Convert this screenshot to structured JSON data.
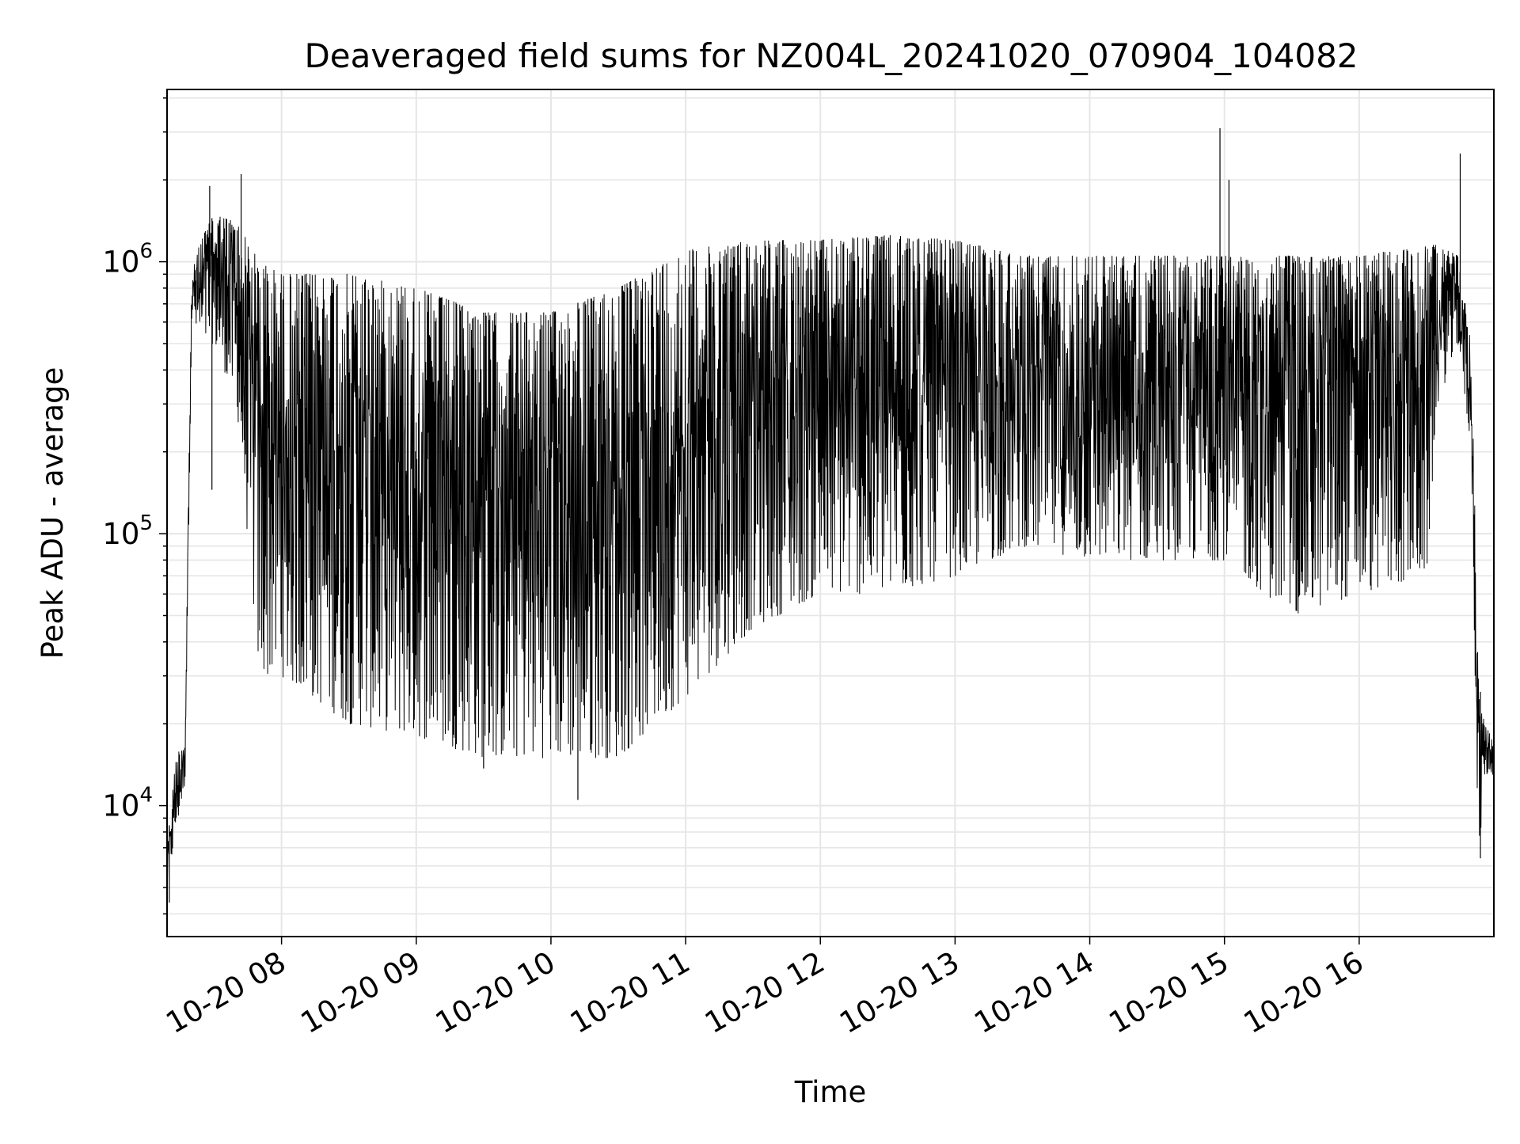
{
  "chart_data": {
    "type": "line",
    "title": "Deaveraged field sums for NZ004L_20241020_070904_104082",
    "xlabel": "Time",
    "ylabel": "Peak ADU - average",
    "y_scale": "log",
    "ylim": [
      3300,
      4300000
    ],
    "xlim": [
      "2024-10-20 07:09",
      "2024-10-20 17:00"
    ],
    "grid": true,
    "line_color": "#000000",
    "grid_color": "#e6e6e6",
    "x_ticks": [
      {
        "time": "2024-10-20 08:00",
        "label": "10-20 08"
      },
      {
        "time": "2024-10-20 09:00",
        "label": "10-20 09"
      },
      {
        "time": "2024-10-20 10:00",
        "label": "10-20 10"
      },
      {
        "time": "2024-10-20 11:00",
        "label": "10-20 11"
      },
      {
        "time": "2024-10-20 12:00",
        "label": "10-20 12"
      },
      {
        "time": "2024-10-20 13:00",
        "label": "10-20 13"
      },
      {
        "time": "2024-10-20 14:00",
        "label": "10-20 14"
      },
      {
        "time": "2024-10-20 15:00",
        "label": "10-20 15"
      },
      {
        "time": "2024-10-20 16:00",
        "label": "10-20 16"
      }
    ],
    "y_ticks": [
      {
        "value": 10000,
        "base": "10",
        "exp": "4"
      },
      {
        "value": 100000,
        "base": "10",
        "exp": "5"
      },
      {
        "value": 1000000,
        "base": "10",
        "exp": "6"
      }
    ],
    "series": [
      {
        "profile": {
          "times": [
            "2024-10-20 07:09",
            "2024-10-20 07:13",
            "2024-10-20 07:17",
            "2024-10-20 07:20",
            "2024-10-20 07:24",
            "2024-10-20 07:30",
            "2024-10-20 07:40",
            "2024-10-20 07:50",
            "2024-10-20 08:00",
            "2024-10-20 08:30",
            "2024-10-20 09:00",
            "2024-10-20 09:30",
            "2024-10-20 10:00",
            "2024-10-20 10:30",
            "2024-10-20 11:00",
            "2024-10-20 11:30",
            "2024-10-20 12:00",
            "2024-10-20 12:30",
            "2024-10-20 13:00",
            "2024-10-20 13:30",
            "2024-10-20 14:00",
            "2024-10-20 14:30",
            "2024-10-20 15:00",
            "2024-10-20 15:30",
            "2024-10-20 16:00",
            "2024-10-20 16:30",
            "2024-10-20 16:35",
            "2024-10-20 16:44",
            "2024-10-20 16:50",
            "2024-10-20 16:53",
            "2024-10-20 16:56",
            "2024-10-20 17:00"
          ],
          "upper": [
            7000,
            15000,
            18000,
            900000,
            1200000,
            1500000,
            1400000,
            1000000,
            900000,
            900000,
            800000,
            650000,
            650000,
            800000,
            1100000,
            1200000,
            1200000,
            1250000,
            1200000,
            1050000,
            1050000,
            1050000,
            1050000,
            1050000,
            1050000,
            1150000,
            1150000,
            1050000,
            500000,
            30000,
            20000,
            17000
          ],
          "lower": [
            5000,
            8000,
            12000,
            600000,
            500000,
            500000,
            300000,
            30000,
            30000,
            20000,
            18000,
            15000,
            15000,
            15000,
            25000,
            45000,
            60000,
            60000,
            70000,
            90000,
            80000,
            80000,
            80000,
            50000,
            60000,
            70000,
            300000,
            500000,
            200000,
            6000,
            13000,
            13000
          ],
          "spikes": [
            {
              "time": "2024-10-20 07:42",
              "value": 2100000
            },
            {
              "time": "2024-10-20 07:28",
              "value": 1900000
            },
            {
              "time": "2024-10-20 14:58",
              "value": 3100000
            },
            {
              "time": "2024-10-20 15:02",
              "value": 2000000
            },
            {
              "time": "2024-10-20 16:45",
              "value": 2500000
            },
            {
              "time": "2024-10-20 07:29",
              "value": 145000
            },
            {
              "time": "2024-10-20 10:12",
              "value": 10500
            },
            {
              "time": "2024-10-20 09:30",
              "value": 13700
            },
            {
              "time": "2024-10-20 16:54",
              "value": 6400
            },
            {
              "time": "2024-10-20 07:10",
              "value": 4400
            }
          ]
        }
      }
    ]
  }
}
